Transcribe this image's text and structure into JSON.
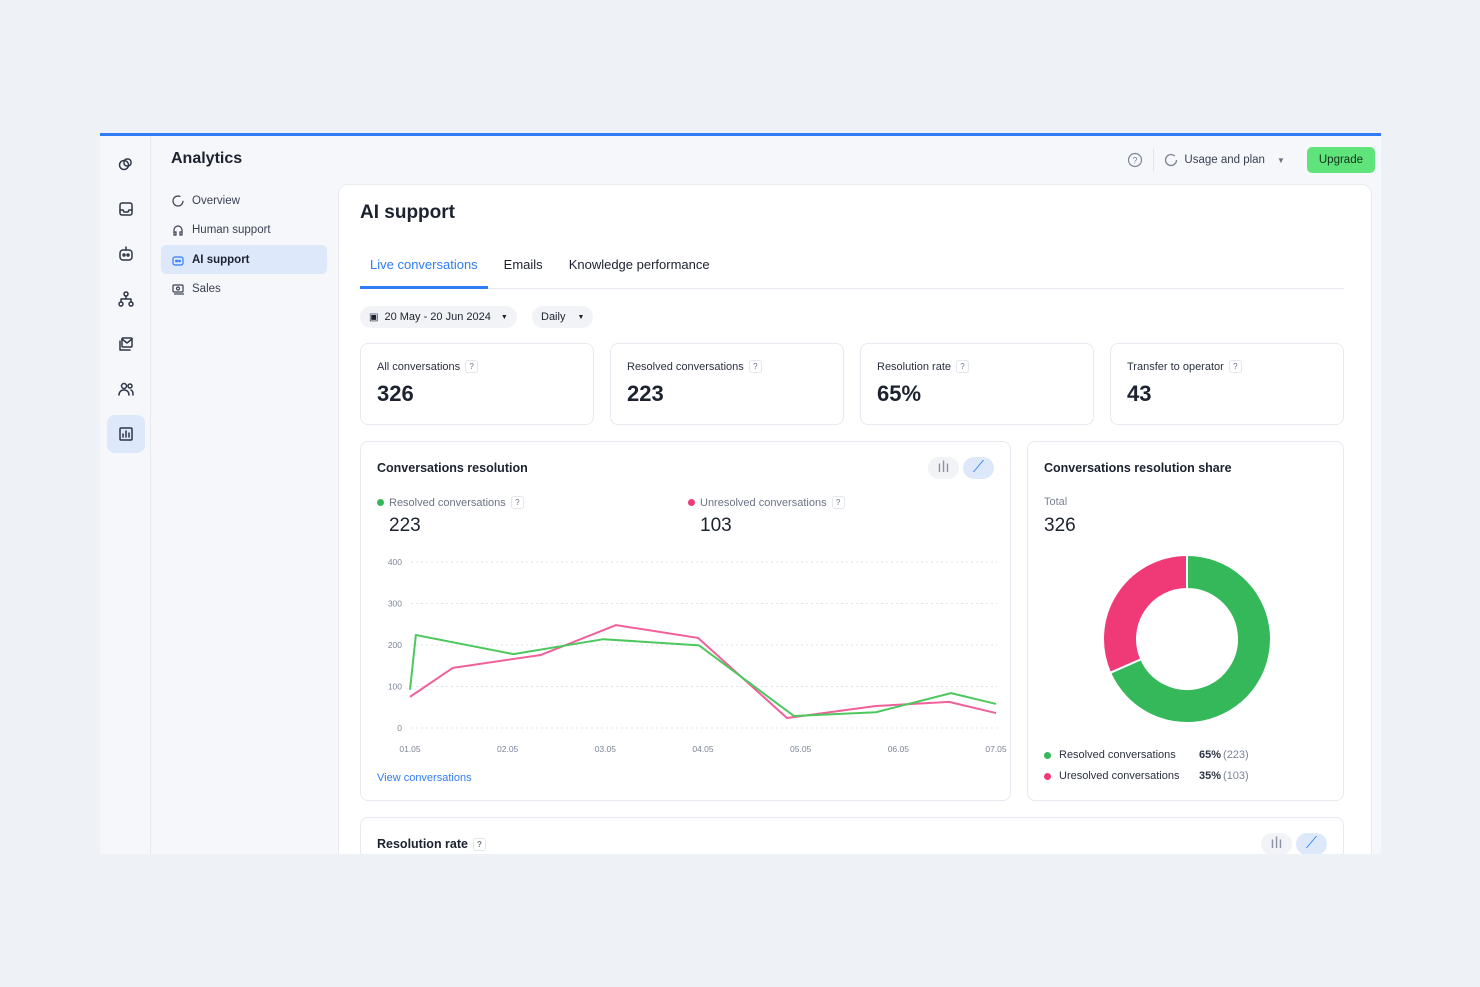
{
  "app": {
    "title": "Analytics",
    "usage_label": "Usage and plan",
    "upgrade_label": "Upgrade"
  },
  "rail": [
    {
      "icon": "shapes-icon"
    },
    {
      "icon": "inbox-icon"
    },
    {
      "icon": "bot-icon"
    },
    {
      "icon": "flow-icon"
    },
    {
      "icon": "mail-stack-icon"
    },
    {
      "icon": "users-icon"
    },
    {
      "icon": "analytics-icon",
      "active": true
    }
  ],
  "sidebar": {
    "items": [
      {
        "label": "Overview"
      },
      {
        "label": "Human support"
      },
      {
        "label": "AI support",
        "active": true
      },
      {
        "label": "Sales"
      }
    ]
  },
  "page": {
    "title": "AI support",
    "tabs": [
      {
        "label": "Live conversations",
        "active": true
      },
      {
        "label": "Emails"
      },
      {
        "label": "Knowledge performance"
      }
    ],
    "date_range": "20 May - 20 Jun 2024",
    "granularity": "Daily"
  },
  "stats": [
    {
      "label": "All conversations",
      "value": "326"
    },
    {
      "label": "Resolved conversations",
      "value": "223"
    },
    {
      "label": "Resolution rate",
      "value": "65%"
    },
    {
      "label": "Transfer to operator",
      "value": "43"
    }
  ],
  "resolution_card": {
    "title": "Conversations resolution",
    "resolved_label": "Resolved conversations",
    "resolved_value": "223",
    "unresolved_label": "Unresolved conversations",
    "unresolved_value": "103",
    "link": "View conversations"
  },
  "share_card": {
    "title": "Conversations resolution share",
    "total_label": "Total",
    "total_value": "326",
    "items": [
      {
        "label": "Resolved conversations",
        "pct": "65%",
        "count": "(223)",
        "color": "#35b85a"
      },
      {
        "label": "Uresolved conversations",
        "pct": "35%",
        "count": "(103)",
        "color": "#f03a78"
      }
    ]
  },
  "rate_card": {
    "title": "Resolution rate"
  },
  "colors": {
    "accent": "#2f7cf6",
    "resolved": "#4cc85f",
    "unresolved": "#f0609a"
  },
  "chart_data": [
    {
      "type": "line",
      "ylim": [
        0,
        400
      ],
      "yticks": [
        "0",
        "100",
        "200",
        "300",
        "400"
      ],
      "xticks": [
        "01.05",
        "02.05",
        "03.05",
        "04.05",
        "05.05",
        "06.05",
        "07.05"
      ],
      "grid": true,
      "series": [
        {
          "name": "Resolved conversations",
          "color": "#4cc85f",
          "x": [
            1.0,
            1.06,
            2.06,
            2.98,
            3.96,
            4.93,
            5.77,
            6.54,
            7.0
          ],
          "y": [
            92,
            224,
            178,
            214,
            199,
            29,
            38,
            84,
            58
          ]
        },
        {
          "name": "Unresolved conversations",
          "color": "#f0609a",
          "x": [
            1.0,
            1.44,
            2.34,
            3.11,
            3.95,
            4.86,
            5.77,
            6.52,
            7.0
          ],
          "y": [
            75,
            145,
            176,
            248,
            217,
            24,
            53,
            63,
            36
          ]
        }
      ]
    },
    {
      "type": "pie",
      "donut": true,
      "categories": [
        "Resolved conversations",
        "Uresolved conversations"
      ],
      "values": [
        223,
        103
      ],
      "colors": [
        "#35b85a",
        "#f03a78"
      ]
    }
  ]
}
